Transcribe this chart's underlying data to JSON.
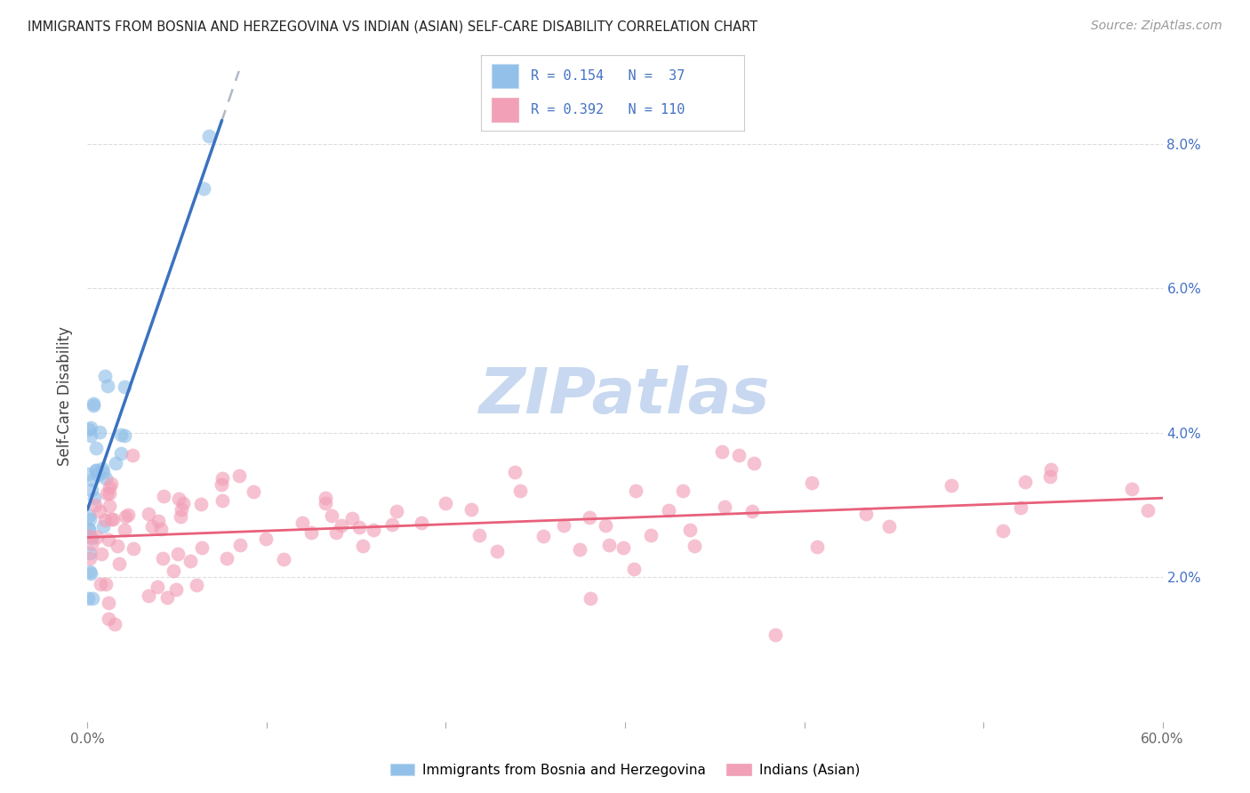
{
  "title": "IMMIGRANTS FROM BOSNIA AND HERZEGOVINA VS INDIAN (ASIAN) SELF-CARE DISABILITY CORRELATION CHART",
  "source": "Source: ZipAtlas.com",
  "ylabel": "Self-Care Disability",
  "xlim": [
    0.0,
    0.6
  ],
  "ylim": [
    0.0,
    0.09
  ],
  "ytick_pos": [
    0.02,
    0.04,
    0.06,
    0.08
  ],
  "ytick_labels": [
    "2.0%",
    "4.0%",
    "6.0%",
    "8.0%"
  ],
  "xtick_pos": [
    0.0,
    0.1,
    0.2,
    0.3,
    0.4,
    0.5,
    0.6
  ],
  "xtick_labels": [
    "0.0%",
    "",
    "",
    "",
    "",
    "",
    "60.0%"
  ],
  "blue_scatter_color": "#92C0E8",
  "pink_scatter_color": "#F2A0B8",
  "blue_line_color": "#3A72C0",
  "pink_line_color": "#E8607A",
  "dashed_line_color": "#B0B8C8",
  "text_color_title": "#222222",
  "text_color_source": "#999999",
  "text_color_axis": "#4472C4",
  "background_color": "#FFFFFF",
  "grid_color": "#DDDDDD",
  "legend_text_color": "#4472C4",
  "watermark_text": "ZIPatlas",
  "watermark_color": "#C8D8F0",
  "bottom_legend_label1": "Immigrants from Bosnia and Herzegovina",
  "bottom_legend_label2": "Indians (Asian)"
}
